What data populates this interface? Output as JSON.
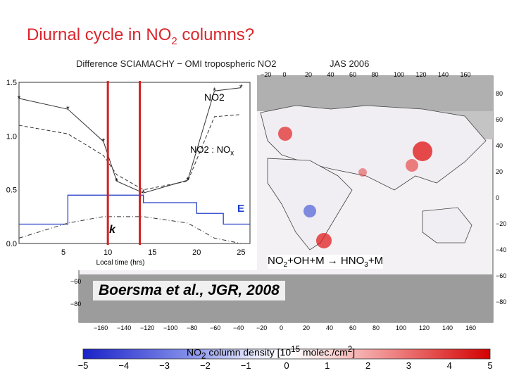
{
  "slide": {
    "title_prefix": "Diurnal cycle in NO",
    "title_sub": "2",
    "title_suffix": " columns?"
  },
  "chart_data": [
    {
      "type": "line",
      "title": "Difference SCIAMACHY − OMI tropospheric NO2",
      "xlabel": "Local time (hrs)",
      "ylabel": "",
      "xlim": [
        0,
        26
      ],
      "ylim": [
        0,
        1.5
      ],
      "x_ticks": [
        "5",
        "10",
        "15",
        "20",
        "25"
      ],
      "y_ticks": [
        "0.0",
        "0.5",
        "1.0",
        "1.5"
      ],
      "series": [
        {
          "name": "NO2",
          "style": "solid-star",
          "x": [
            0,
            5.5,
            9.5,
            11,
            14,
            19,
            22,
            25
          ],
          "y": [
            1.35,
            1.25,
            0.95,
            0.58,
            0.47,
            0.59,
            1.42,
            1.45
          ]
        },
        {
          "name": "NO2 : NOx",
          "style": "dashed",
          "x": [
            0,
            5.5,
            9.5,
            11,
            14,
            19,
            22,
            25
          ],
          "y": [
            1.1,
            1.02,
            0.82,
            0.64,
            0.5,
            0.58,
            1.18,
            1.2
          ]
        },
        {
          "name": "E",
          "style": "step-blue",
          "x": [
            0,
            5.5,
            14,
            20,
            23,
            26
          ],
          "y": [
            0.18,
            0.45,
            0.38,
            0.28,
            0.18,
            0.18
          ]
        },
        {
          "name": "k",
          "style": "dashdot",
          "x": [
            0,
            5.5,
            9.5,
            14,
            19,
            22,
            25
          ],
          "y": [
            0.05,
            0.19,
            0.25,
            0.25,
            0.19,
            0.05,
            0.0
          ]
        }
      ],
      "markers_red_vertical_x": [
        10.0,
        13.6
      ],
      "annotations": {
        "no2": "NO2",
        "ratio_no2": "NO2",
        "ratio_sep": " : NO",
        "ratio_x": "x",
        "e": "E",
        "k": "k"
      }
    },
    {
      "type": "heatmap",
      "title": "JAS 2006",
      "colorbar_label_pre": "NO",
      "colorbar_label_sub": "2",
      "colorbar_label_post": " column density [10",
      "colorbar_label_sup": "15",
      "colorbar_label_end": " molec./cm",
      "colorbar_label_sup2": "2",
      "colorbar_label_close": "]",
      "colorbar_range": [
        -5,
        5
      ],
      "colorbar_ticks": [
        "−5",
        "−4",
        "−3",
        "−2",
        "−1",
        "0",
        "1",
        "2",
        "3",
        "4",
        "5"
      ],
      "lon_ticks_top": [
        "−20",
        "0",
        "20",
        "40",
        "60",
        "80",
        "100",
        "120",
        "140",
        "160"
      ],
      "lon_ticks_bottom": [
        "−160",
        "−140",
        "−120",
        "−100",
        "−80",
        "−60",
        "−40",
        "−20",
        "0",
        "20",
        "40",
        "60",
        "80",
        "100",
        "120",
        "140",
        "160"
      ],
      "lat_ticks_right": [
        "80",
        "60",
        "40",
        "20",
        "0",
        "−20",
        "−40",
        "−60",
        "−80"
      ],
      "lat_ticks_left": [
        "−60",
        "−80"
      ],
      "colors": {
        "negative": "#1433cc",
        "positive": "#e01010",
        "neutral": "#ffffff",
        "nodata": "#a8a8a8"
      }
    }
  ],
  "annotations": {
    "reaction_a": "NO",
    "reaction_a_sub": "2",
    "reaction_b": "+OH+M → HNO",
    "reaction_b_sub": "3",
    "reaction_c": "+M",
    "citation": "Boersma et al., JGR, 2008"
  }
}
